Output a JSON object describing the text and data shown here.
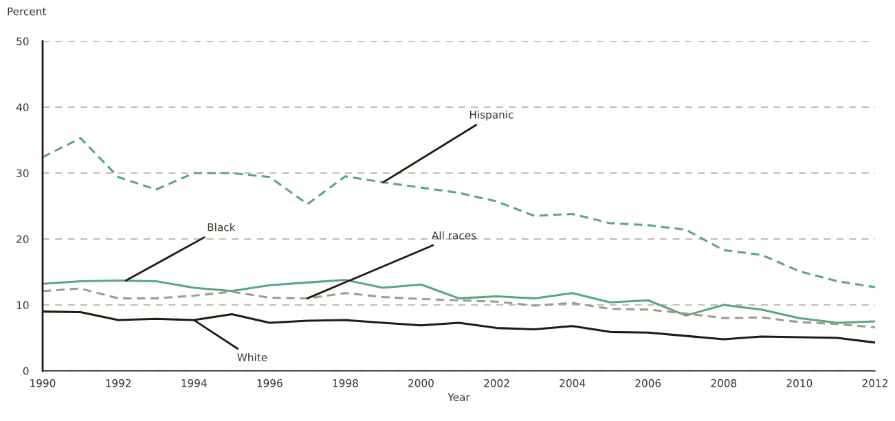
{
  "chart_data": {
    "type": "line",
    "ylabel": "Percent",
    "xlabel": "Year",
    "x": [
      1990,
      1991,
      1992,
      1993,
      1994,
      1995,
      1996,
      1997,
      1998,
      1999,
      2000,
      2001,
      2002,
      2003,
      2004,
      2005,
      2006,
      2007,
      2008,
      2009,
      2010,
      2011,
      2012
    ],
    "series": [
      {
        "color": "#5aa585",
        "line_style": "dashed",
        "values": [
          32.4,
          35.3,
          29.4,
          27.5,
          30.0,
          30.0,
          29.4,
          25.3,
          29.5,
          28.6,
          27.8,
          27.0,
          25.7,
          23.5,
          23.8,
          22.4,
          22.1,
          21.4,
          18.3,
          17.6,
          15.1,
          13.6,
          12.7
        ]
      },
      {
        "color": "#5aa585",
        "line_style": "solid",
        "values": [
          13.2,
          13.6,
          13.7,
          13.6,
          12.6,
          12.1,
          13.0,
          13.4,
          13.8,
          12.6,
          13.1,
          11.0,
          11.3,
          11.0,
          11.8,
          10.4,
          10.7,
          8.4,
          10.0,
          9.3,
          8.0,
          7.3,
          7.5
        ]
      },
      {
        "color": "#a59a88",
        "line_style": "dashed",
        "values": [
          12.1,
          12.5,
          11.0,
          11.0,
          11.4,
          12.0,
          11.1,
          11.0,
          11.8,
          11.2,
          10.9,
          10.7,
          10.5,
          9.9,
          10.3,
          9.4,
          9.3,
          8.7,
          8.0,
          8.1,
          7.4,
          7.1,
          6.6
        ]
      },
      {
        "color": "#231a10",
        "line_style": "solid",
        "values": [
          9.0,
          8.9,
          7.7,
          7.9,
          7.7,
          8.6,
          7.3,
          7.6,
          7.7,
          7.3,
          6.9,
          7.3,
          6.5,
          6.3,
          6.8,
          5.9,
          5.8,
          5.3,
          4.8,
          5.2,
          5.1,
          5.0,
          4.3
        ]
      }
    ],
    "annotations": [
      {
        "text": "Hispanic",
        "x": 1999,
        "y": 28.6
      },
      {
        "text": "Black",
        "x": 1992.2,
        "y": 13.7
      },
      {
        "text": "All races",
        "x": 1997,
        "y": 11.0
      },
      {
        "text": "White",
        "x": 1994,
        "y": 7.7
      }
    ],
    "xlim": [
      1990,
      2012
    ],
    "xticks": [
      1990,
      1992,
      1994,
      1996,
      1998,
      2000,
      2002,
      2004,
      2006,
      2008,
      2010,
      2012
    ],
    "ylim": [
      0,
      50
    ],
    "yticks": [
      0,
      10,
      20,
      30,
      40,
      50
    ],
    "grid": "y",
    "legend": false
  }
}
